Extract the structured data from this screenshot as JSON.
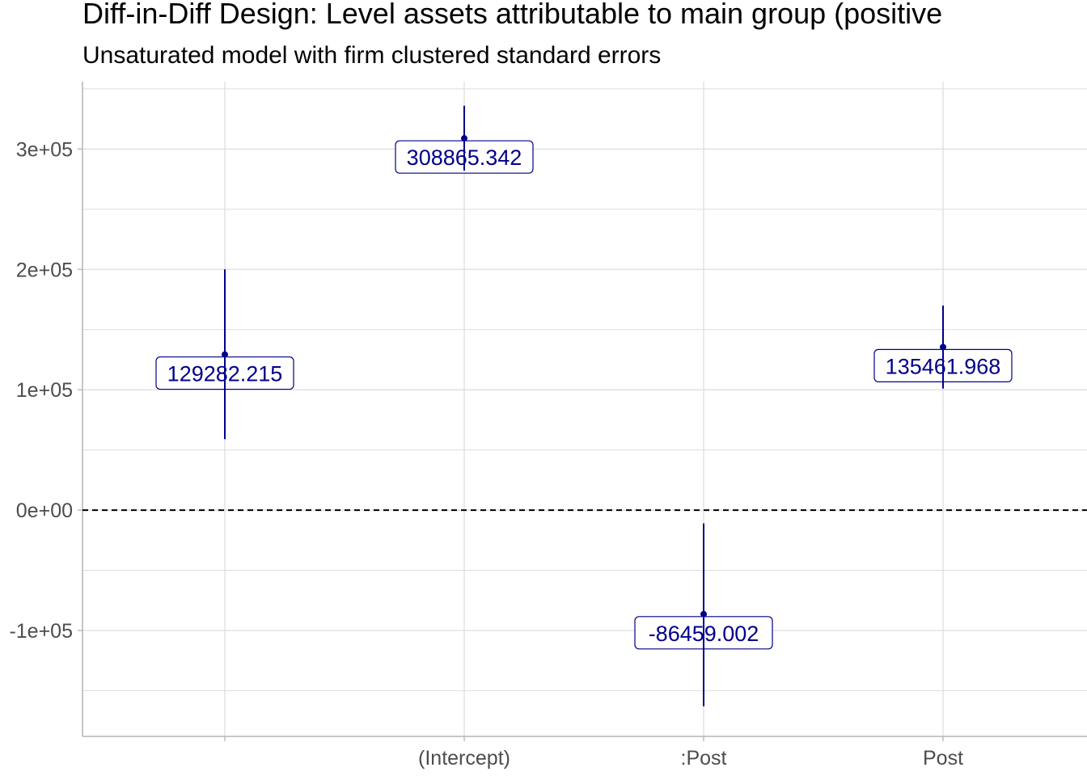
{
  "chart_data": {
    "type": "scatter",
    "title": "Diff-in-Diff Design: Level assets attributable to main group (positive",
    "subtitle": "Unsaturated model with firm clustered standard errors",
    "xlabel": "",
    "ylabel": "",
    "categories": [
      "",
      "(Intercept)",
      ":Post",
      "Post"
    ],
    "ylim": [
      -188000,
      356000
    ],
    "y_ticks": [
      -100000,
      0,
      100000,
      200000,
      300000
    ],
    "y_tick_labels": [
      "-1e+05",
      "0e+00",
      "1e+05",
      "2e+05",
      "3e+05"
    ],
    "grid": true,
    "reference_line": 0,
    "series": [
      {
        "points": [
          {
            "category": "",
            "estimate": 129282.215,
            "lower": 59000,
            "upper": 200000,
            "label": "129282.215"
          },
          {
            "category": "(Intercept)",
            "estimate": 308865.342,
            "lower": 282000,
            "upper": 336000,
            "label": "308865.342"
          },
          {
            "category": ":Post",
            "estimate": -86459.002,
            "lower": -163000,
            "upper": -11000,
            "label": "-86459.002"
          },
          {
            "category": "Post",
            "estimate": 135461.968,
            "lower": 101000,
            "upper": 170000,
            "label": "135461.968"
          }
        ]
      }
    ],
    "colors": {
      "point": "#00008B",
      "label_text": "#00008B",
      "label_border": "#00008B",
      "reference_line": "#000000",
      "grid": "#dedede",
      "axis": "#b3b3b3",
      "tick_text": "#4d4d4d"
    }
  }
}
